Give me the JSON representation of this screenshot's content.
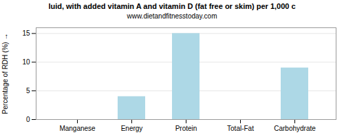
{
  "chart_data": {
    "type": "bar",
    "title": "luid, with added vitamin A and vitamin D (fat free or skim) per 1,000 c",
    "subtitle": "www.dietandfitnesstoday.com",
    "ylabel": "Percentage of RDH (%)",
    "categories": [
      "Manganese",
      "Energy",
      "Protein",
      "Total-Fat",
      "Carbohydrate"
    ],
    "values": [
      0,
      4,
      15,
      0,
      9
    ],
    "color": "#add8e6",
    "ylim": [
      0,
      16
    ],
    "yticks": [
      0,
      5,
      10,
      15
    ],
    "grid": true
  }
}
